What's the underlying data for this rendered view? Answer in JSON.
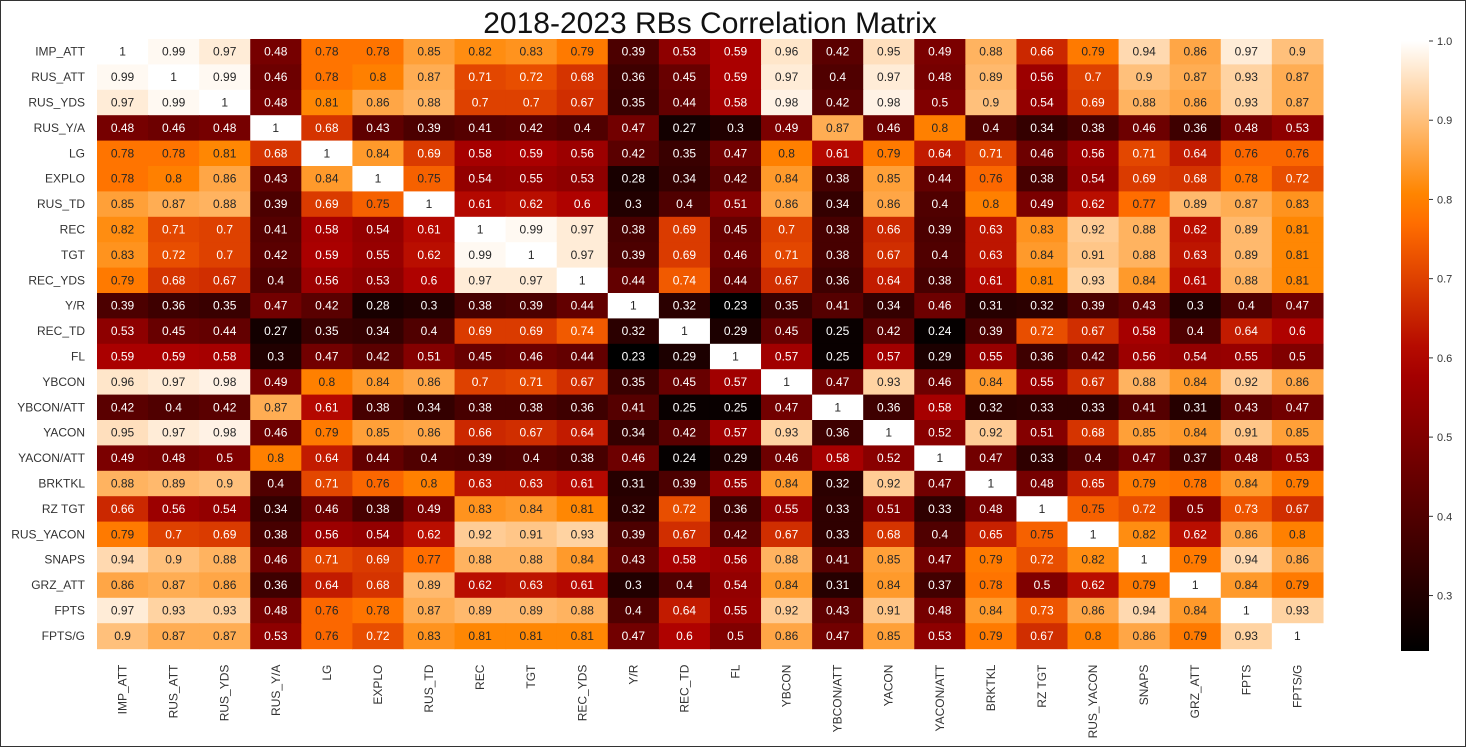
{
  "chart_data": {
    "type": "heatmap",
    "title": "2018-2023 RBs Correlation Matrix",
    "labels": [
      "IMP_ATT",
      "RUS_ATT",
      "RUS_YDS",
      "RUS_Y/A",
      "LG",
      "EXPLO",
      "RUS_TD",
      "REC",
      "TGT",
      "REC_YDS",
      "Y/R",
      "REC_TD",
      "FL",
      "YBCON",
      "YBCON/ATT",
      "YACON",
      "YACON/ATT",
      "BRKTKL",
      "RZ TGT",
      "RUS_YACON",
      "SNAPS",
      "GRZ_ATT",
      "FPTS",
      "FPTS/G"
    ],
    "values": [
      [
        1,
        0.99,
        0.97,
        0.48,
        0.78,
        0.78,
        0.85,
        0.82,
        0.83,
        0.79,
        0.39,
        0.53,
        0.59,
        0.96,
        0.42,
        0.95,
        0.49,
        0.88,
        0.66,
        0.79,
        0.94,
        0.86,
        0.97,
        0.9
      ],
      [
        0.99,
        1,
        0.99,
        0.46,
        0.78,
        0.8,
        0.87,
        0.71,
        0.72,
        0.68,
        0.36,
        0.45,
        0.59,
        0.97,
        0.4,
        0.97,
        0.48,
        0.89,
        0.56,
        0.7,
        0.9,
        0.87,
        0.93,
        0.87
      ],
      [
        0.97,
        0.99,
        1,
        0.48,
        0.81,
        0.86,
        0.88,
        0.7,
        0.7,
        0.67,
        0.35,
        0.44,
        0.58,
        0.98,
        0.42,
        0.98,
        0.5,
        0.9,
        0.54,
        0.69,
        0.88,
        0.86,
        0.93,
        0.87
      ],
      [
        0.48,
        0.46,
        0.48,
        1,
        0.68,
        0.43,
        0.39,
        0.41,
        0.42,
        0.4,
        0.47,
        0.27,
        0.3,
        0.49,
        0.87,
        0.46,
        0.8,
        0.4,
        0.34,
        0.38,
        0.46,
        0.36,
        0.48,
        0.53
      ],
      [
        0.78,
        0.78,
        0.81,
        0.68,
        1,
        0.84,
        0.69,
        0.58,
        0.59,
        0.56,
        0.42,
        0.35,
        0.47,
        0.8,
        0.61,
        0.79,
        0.64,
        0.71,
        0.46,
        0.56,
        0.71,
        0.64,
        0.76,
        0.76
      ],
      [
        0.78,
        0.8,
        0.86,
        0.43,
        0.84,
        1,
        0.75,
        0.54,
        0.55,
        0.53,
        0.28,
        0.34,
        0.42,
        0.84,
        0.38,
        0.85,
        0.44,
        0.76,
        0.38,
        0.54,
        0.69,
        0.68,
        0.78,
        0.72
      ],
      [
        0.85,
        0.87,
        0.88,
        0.39,
        0.69,
        0.75,
        1,
        0.61,
        0.62,
        0.6,
        0.3,
        0.4,
        0.51,
        0.86,
        0.34,
        0.86,
        0.4,
        0.8,
        0.49,
        0.62,
        0.77,
        0.89,
        0.87,
        0.83
      ],
      [
        0.82,
        0.71,
        0.7,
        0.41,
        0.58,
        0.54,
        0.61,
        1,
        0.99,
        0.97,
        0.38,
        0.69,
        0.45,
        0.7,
        0.38,
        0.66,
        0.39,
        0.63,
        0.83,
        0.92,
        0.88,
        0.62,
        0.89,
        0.81
      ],
      [
        0.83,
        0.72,
        0.7,
        0.42,
        0.59,
        0.55,
        0.62,
        0.99,
        1,
        0.97,
        0.39,
        0.69,
        0.46,
        0.71,
        0.38,
        0.67,
        0.4,
        0.63,
        0.84,
        0.91,
        0.88,
        0.63,
        0.89,
        0.81
      ],
      [
        0.79,
        0.68,
        0.67,
        0.4,
        0.56,
        0.53,
        0.6,
        0.97,
        0.97,
        1,
        0.44,
        0.74,
        0.44,
        0.67,
        0.36,
        0.64,
        0.38,
        0.61,
        0.81,
        0.93,
        0.84,
        0.61,
        0.88,
        0.81
      ],
      [
        0.39,
        0.36,
        0.35,
        0.47,
        0.42,
        0.28,
        0.3,
        0.38,
        0.39,
        0.44,
        1,
        0.32,
        0.23,
        0.35,
        0.41,
        0.34,
        0.46,
        0.31,
        0.32,
        0.39,
        0.43,
        0.3,
        0.4,
        0.47
      ],
      [
        0.53,
        0.45,
        0.44,
        0.27,
        0.35,
        0.34,
        0.4,
        0.69,
        0.69,
        0.74,
        0.32,
        1,
        0.29,
        0.45,
        0.25,
        0.42,
        0.24,
        0.39,
        0.72,
        0.67,
        0.58,
        0.4,
        0.64,
        0.6
      ],
      [
        0.59,
        0.59,
        0.58,
        0.3,
        0.47,
        0.42,
        0.51,
        0.45,
        0.46,
        0.44,
        0.23,
        0.29,
        1,
        0.57,
        0.25,
        0.57,
        0.29,
        0.55,
        0.36,
        0.42,
        0.56,
        0.54,
        0.55,
        0.5
      ],
      [
        0.96,
        0.97,
        0.98,
        0.49,
        0.8,
        0.84,
        0.86,
        0.7,
        0.71,
        0.67,
        0.35,
        0.45,
        0.57,
        1,
        0.47,
        0.93,
        0.46,
        0.84,
        0.55,
        0.67,
        0.88,
        0.84,
        0.92,
        0.86
      ],
      [
        0.42,
        0.4,
        0.42,
        0.87,
        0.61,
        0.38,
        0.34,
        0.38,
        0.38,
        0.36,
        0.41,
        0.25,
        0.25,
        0.47,
        1,
        0.36,
        0.58,
        0.32,
        0.33,
        0.33,
        0.41,
        0.31,
        0.43,
        0.47
      ],
      [
        0.95,
        0.97,
        0.98,
        0.46,
        0.79,
        0.85,
        0.86,
        0.66,
        0.67,
        0.64,
        0.34,
        0.42,
        0.57,
        0.93,
        0.36,
        1,
        0.52,
        0.92,
        0.51,
        0.68,
        0.85,
        0.84,
        0.91,
        0.85
      ],
      [
        0.49,
        0.48,
        0.5,
        0.8,
        0.64,
        0.44,
        0.4,
        0.39,
        0.4,
        0.38,
        0.46,
        0.24,
        0.29,
        0.46,
        0.58,
        0.52,
        1,
        0.47,
        0.33,
        0.4,
        0.47,
        0.37,
        0.48,
        0.53
      ],
      [
        0.88,
        0.89,
        0.9,
        0.4,
        0.71,
        0.76,
        0.8,
        0.63,
        0.63,
        0.61,
        0.31,
        0.39,
        0.55,
        0.84,
        0.32,
        0.92,
        0.47,
        1,
        0.48,
        0.65,
        0.79,
        0.78,
        0.84,
        0.79
      ],
      [
        0.66,
        0.56,
        0.54,
        0.34,
        0.46,
        0.38,
        0.49,
        0.83,
        0.84,
        0.81,
        0.32,
        0.72,
        0.36,
        0.55,
        0.33,
        0.51,
        0.33,
        0.48,
        1,
        0.75,
        0.72,
        0.5,
        0.73,
        0.67
      ],
      [
        0.79,
        0.7,
        0.69,
        0.38,
        0.56,
        0.54,
        0.62,
        0.92,
        0.91,
        0.93,
        0.39,
        0.67,
        0.42,
        0.67,
        0.33,
        0.68,
        0.4,
        0.65,
        0.75,
        1,
        0.82,
        0.62,
        0.86,
        0.8
      ],
      [
        0.94,
        0.9,
        0.88,
        0.46,
        0.71,
        0.69,
        0.77,
        0.88,
        0.88,
        0.84,
        0.43,
        0.58,
        0.56,
        0.88,
        0.41,
        0.85,
        0.47,
        0.79,
        0.72,
        0.82,
        1,
        0.79,
        0.94,
        0.86
      ],
      [
        0.86,
        0.87,
        0.86,
        0.36,
        0.64,
        0.68,
        0.89,
        0.62,
        0.63,
        0.61,
        0.3,
        0.4,
        0.54,
        0.84,
        0.31,
        0.84,
        0.37,
        0.78,
        0.5,
        0.62,
        0.79,
        1,
        0.84,
        0.79
      ],
      [
        0.97,
        0.93,
        0.93,
        0.48,
        0.76,
        0.78,
        0.87,
        0.89,
        0.89,
        0.88,
        0.4,
        0.64,
        0.55,
        0.92,
        0.43,
        0.91,
        0.48,
        0.84,
        0.73,
        0.86,
        0.94,
        0.84,
        1,
        0.93
      ],
      [
        0.9,
        0.87,
        0.87,
        0.53,
        0.76,
        0.72,
        0.83,
        0.81,
        0.81,
        0.81,
        0.47,
        0.6,
        0.5,
        0.86,
        0.47,
        0.85,
        0.53,
        0.79,
        0.67,
        0.8,
        0.86,
        0.79,
        0.93,
        1
      ]
    ],
    "colormap": "gist_heat",
    "colorbar": {
      "min": 0.23,
      "max": 1.0,
      "ticks": [
        0.3,
        0.4,
        0.5,
        0.6,
        0.7,
        0.8,
        0.9,
        1.0
      ],
      "tick_labels": [
        "0.3",
        "0.4",
        "0.5",
        "0.6",
        "0.7",
        "0.8",
        "0.9",
        "1.0"
      ],
      "placement": "right"
    },
    "annotations": true
  }
}
